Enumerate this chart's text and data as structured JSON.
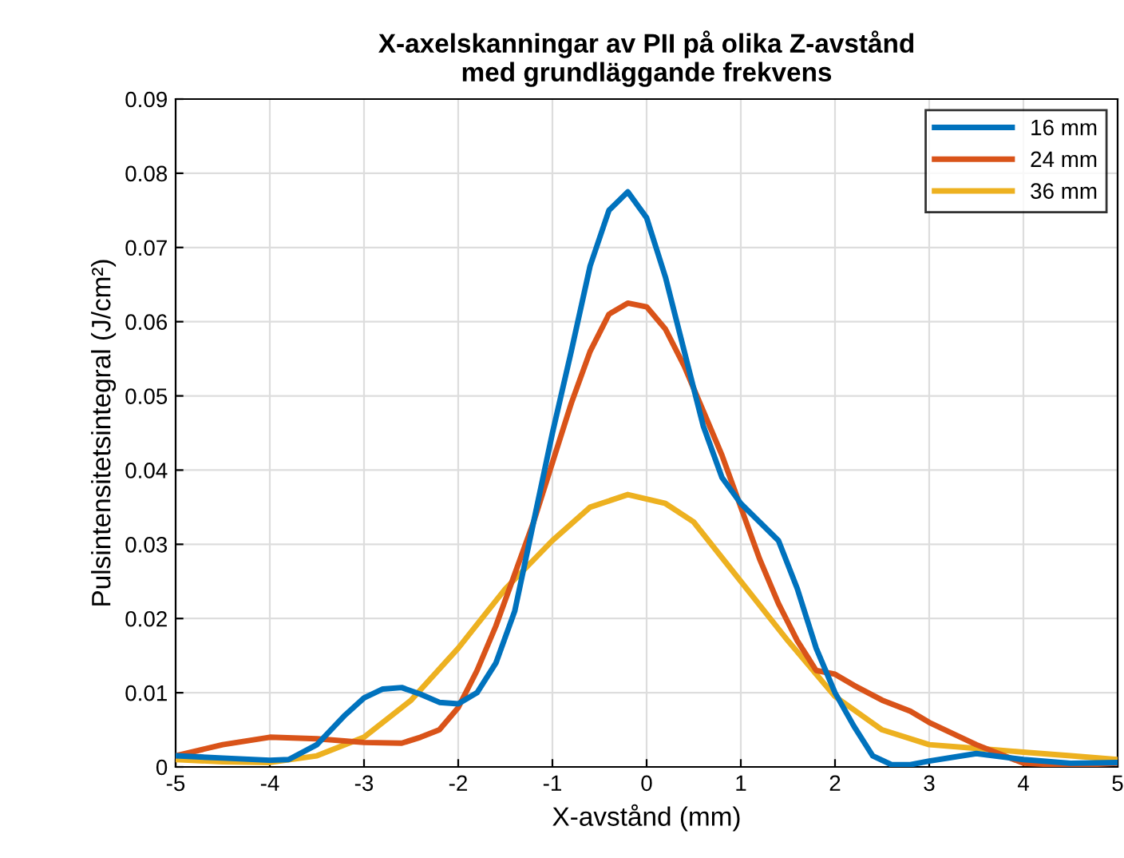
{
  "chart_data": {
    "type": "line",
    "title": "X-axelskanningar av PII på olika Z-avstånd\nmed grundläggande frekvens",
    "xlabel": "X-avstånd (mm)",
    "ylabel": "Pulsintensitetsintegral (J/cm²)",
    "xlim": [
      -5,
      5
    ],
    "xticks": [
      -5,
      -4,
      -3,
      -2,
      -1,
      0,
      1,
      2,
      3,
      4,
      5
    ],
    "ylim": [
      0,
      0.09
    ],
    "yticks": [
      0,
      0.01,
      0.02,
      0.03,
      0.04,
      0.05,
      0.06,
      0.07,
      0.08,
      0.09
    ],
    "grid": true,
    "legend": "top right",
    "line_style": "solid",
    "marker": "none",
    "series": [
      {
        "name": "16 mm",
        "color": "#0072bd",
        "x": [
          -5,
          -4.5,
          -4,
          -3.8,
          -3.5,
          -3.2,
          -3,
          -2.8,
          -2.6,
          -2.4,
          -2.2,
          -2,
          -1.8,
          -1.6,
          -1.4,
          -1.2,
          -1,
          -0.8,
          -0.6,
          -0.4,
          -0.2,
          0,
          0.2,
          0.4,
          0.6,
          0.8,
          1,
          1.2,
          1.4,
          1.6,
          1.8,
          2,
          2.2,
          2.4,
          2.6,
          2.8,
          3,
          3.5,
          4,
          4.5,
          5
        ],
        "values": [
          0.0015,
          0.0012,
          0.0009,
          0.001,
          0.003,
          0.007,
          0.0093,
          0.0105,
          0.0107,
          0.0098,
          0.0087,
          0.0085,
          0.01,
          0.014,
          0.021,
          0.033,
          0.045,
          0.056,
          0.0675,
          0.075,
          0.0775,
          0.074,
          0.066,
          0.056,
          0.046,
          0.039,
          0.0355,
          0.033,
          0.0305,
          0.024,
          0.016,
          0.01,
          0.0055,
          0.0015,
          0.0003,
          0.0003,
          0.0008,
          0.0018,
          0.001,
          0.0005,
          0.0006
        ]
      },
      {
        "name": "24 mm",
        "color": "#d95319",
        "x": [
          -5,
          -4.5,
          -4,
          -3.5,
          -3,
          -2.6,
          -2.4,
          -2.2,
          -2,
          -1.8,
          -1.6,
          -1.4,
          -1.2,
          -1,
          -0.8,
          -0.6,
          -0.4,
          -0.2,
          0,
          0.2,
          0.4,
          0.6,
          0.8,
          1,
          1.2,
          1.4,
          1.6,
          1.8,
          2,
          2.2,
          2.5,
          2.8,
          3,
          3.5,
          4,
          4.5,
          5
        ],
        "values": [
          0.0015,
          0.003,
          0.004,
          0.0038,
          0.0033,
          0.0032,
          0.004,
          0.005,
          0.008,
          0.013,
          0.019,
          0.026,
          0.033,
          0.041,
          0.049,
          0.056,
          0.061,
          0.0625,
          0.062,
          0.059,
          0.054,
          0.048,
          0.042,
          0.035,
          0.028,
          0.022,
          0.017,
          0.013,
          0.0125,
          0.011,
          0.009,
          0.0075,
          0.006,
          0.003,
          0.0005,
          0.0002,
          0.0005
        ]
      },
      {
        "name": "36 mm",
        "color": "#edb120",
        "x": [
          -5,
          -4.5,
          -4,
          -3.5,
          -3,
          -2.5,
          -2,
          -1.5,
          -1,
          -0.6,
          -0.2,
          0.2,
          0.5,
          1,
          1.5,
          2,
          2.5,
          3,
          3.5,
          4,
          4.5,
          5
        ],
        "values": [
          0.001,
          0.0007,
          0.0006,
          0.0015,
          0.004,
          0.009,
          0.016,
          0.024,
          0.0305,
          0.035,
          0.0367,
          0.0355,
          0.033,
          0.025,
          0.017,
          0.0095,
          0.005,
          0.003,
          0.0025,
          0.002,
          0.0015,
          0.001
        ]
      }
    ]
  }
}
